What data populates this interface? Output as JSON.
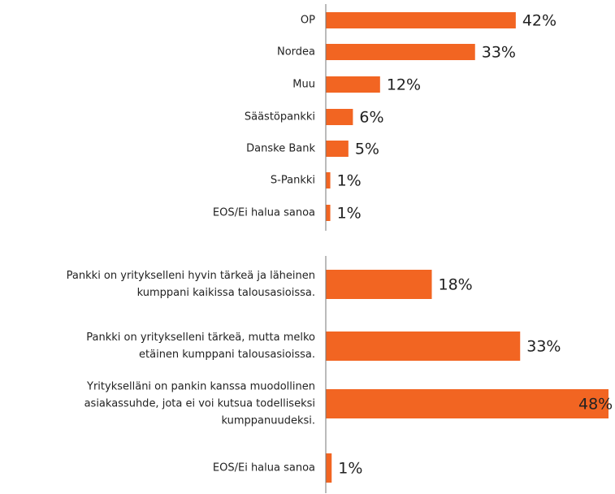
{
  "chart_data": [
    {
      "type": "bar",
      "orientation": "horizontal",
      "categories": [
        "OP",
        "Nordea",
        "Muu",
        "Säästöpankki",
        "Danske Bank",
        "S-Pankki",
        "EOS/Ei halua sanoa"
      ],
      "values": [
        42,
        33,
        12,
        6,
        5,
        1,
        1
      ],
      "value_labels": [
        "42%",
        "33%",
        "12%",
        "6%",
        "5%",
        "1%",
        "1%"
      ],
      "color": "#f26522",
      "xlim": [
        0,
        62.5
      ]
    },
    {
      "type": "bar",
      "orientation": "horizontal",
      "categories": [
        [
          "Pankki on yritykselleni hyvin tärkeä ja läheinen",
          "kumppani kaikissa talousasioissa."
        ],
        [
          "Pankki on yritykselleni tärkeä, mutta melko",
          "etäinen kumppani talousasioissa."
        ],
        [
          "Yritykselläni on pankin kanssa muodollinen",
          "asiakassuhde, jota ei voi kutsua todelliseksi",
          "kumppanuudeksi."
        ],
        [
          "EOS/Ei halua sanoa"
        ]
      ],
      "values": [
        18,
        33,
        48,
        1
      ],
      "value_labels": [
        "18%",
        "33%",
        "48%",
        "1%"
      ],
      "color": "#f26522",
      "xlim": [
        0,
        48
      ]
    }
  ]
}
